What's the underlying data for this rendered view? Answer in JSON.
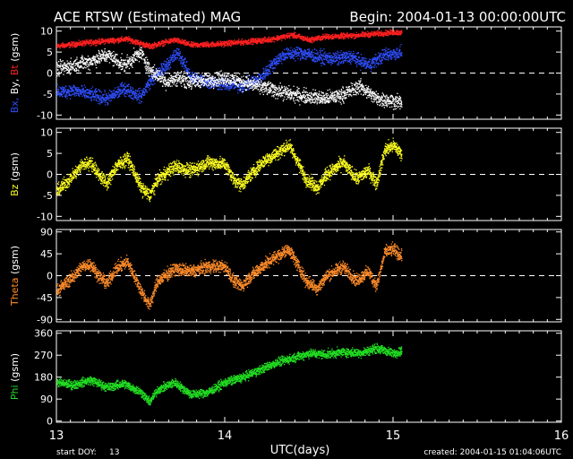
{
  "header": {
    "title": "ACE RTSW (Estimated) MAG",
    "begin": "Begin: 2004-01-13 00:00:00UTC"
  },
  "footer": {
    "start_doy_label": "start DOY:",
    "start_doy_value": "13",
    "xlabel": "UTC(days)",
    "created": "created: 2004-01-15 01:04:06UTC"
  },
  "colors": {
    "background": "#000000",
    "frame": "#ffffff",
    "bx": "#2f4fff",
    "by": "#ffffff",
    "bt": "#ff2020",
    "bz": "#ffff20",
    "theta": "#ff8c2a",
    "phi": "#22dd22"
  },
  "chart_data": [
    {
      "type": "scatter",
      "panel": "B components",
      "ylabel_parts": [
        {
          "text": "Bx,",
          "color": "bx"
        },
        {
          "text": " By,",
          "color": "by"
        },
        {
          "text": " Bt",
          "color": "bt"
        },
        {
          "text": "  (gsm)",
          "color": "by"
        }
      ],
      "ylim": [
        -11,
        11
      ],
      "yticks": [
        10,
        5,
        0,
        -5,
        -10
      ],
      "xlim": [
        13,
        16
      ],
      "zero_line": 0,
      "series": [
        {
          "key": "bt",
          "color_key": "bt",
          "spread": 0.9,
          "density": 6,
          "points": [
            [
              13.0,
              6.5
            ],
            [
              13.15,
              7.2
            ],
            [
              13.3,
              7.8
            ],
            [
              13.42,
              8.2
            ],
            [
              13.55,
              6.5
            ],
            [
              13.7,
              8.0
            ],
            [
              13.8,
              6.8
            ],
            [
              13.95,
              7.0
            ],
            [
              14.1,
              7.5
            ],
            [
              14.25,
              8.0
            ],
            [
              14.4,
              9.2
            ],
            [
              14.5,
              8.0
            ],
            [
              14.6,
              8.8
            ],
            [
              14.75,
              9.0
            ],
            [
              14.9,
              9.5
            ],
            [
              15.0,
              9.8
            ],
            [
              15.05,
              9.8
            ]
          ]
        },
        {
          "key": "bx",
          "color_key": "bx",
          "spread": 2.2,
          "density": 6,
          "points": [
            [
              13.0,
              -4.5
            ],
            [
              13.1,
              -4.0
            ],
            [
              13.2,
              -5.0
            ],
            [
              13.3,
              -6.0
            ],
            [
              13.4,
              -3.5
            ],
            [
              13.5,
              -5.5
            ],
            [
              13.55,
              -2.0
            ],
            [
              13.65,
              2.0
            ],
            [
              13.72,
              5.0
            ],
            [
              13.8,
              -1.0
            ],
            [
              13.9,
              -2.0
            ],
            [
              14.0,
              -2.5
            ],
            [
              14.1,
              -3.0
            ],
            [
              14.2,
              -1.5
            ],
            [
              14.3,
              3.0
            ],
            [
              14.35,
              4.5
            ],
            [
              14.45,
              5.0
            ],
            [
              14.55,
              4.0
            ],
            [
              14.65,
              3.5
            ],
            [
              14.75,
              4.0
            ],
            [
              14.85,
              2.0
            ],
            [
              14.95,
              4.5
            ],
            [
              15.05,
              5.0
            ]
          ]
        },
        {
          "key": "by",
          "color_key": "by",
          "spread": 2.4,
          "density": 6,
          "points": [
            [
              13.0,
              1.0
            ],
            [
              13.1,
              2.0
            ],
            [
              13.2,
              3.0
            ],
            [
              13.3,
              4.5
            ],
            [
              13.4,
              2.0
            ],
            [
              13.5,
              5.0
            ],
            [
              13.55,
              1.0
            ],
            [
              13.65,
              -2.0
            ],
            [
              13.72,
              -1.0
            ],
            [
              13.8,
              -2.0
            ],
            [
              13.9,
              -1.5
            ],
            [
              14.0,
              -1.0
            ],
            [
              14.1,
              -2.0
            ],
            [
              14.2,
              -3.0
            ],
            [
              14.3,
              -4.0
            ],
            [
              14.4,
              -5.0
            ],
            [
              14.5,
              -5.5
            ],
            [
              14.6,
              -6.0
            ],
            [
              14.7,
              -5.0
            ],
            [
              14.8,
              -3.0
            ],
            [
              14.9,
              -6.0
            ],
            [
              15.0,
              -6.5
            ],
            [
              15.05,
              -7.0
            ]
          ]
        }
      ]
    },
    {
      "type": "scatter",
      "panel": "Bz",
      "ylabel_parts": [
        {
          "text": "Bz",
          "color": "bz"
        },
        {
          "text": "  (gsm)",
          "color": "by"
        }
      ],
      "ylim": [
        -11,
        11
      ],
      "yticks": [
        10,
        5,
        0,
        -5,
        -10
      ],
      "xlim": [
        13,
        16
      ],
      "zero_line": 0,
      "series": [
        {
          "key": "bz",
          "color_key": "bz",
          "spread": 2.2,
          "density": 8,
          "points": [
            [
              13.0,
              -4.0
            ],
            [
              13.05,
              -2.0
            ],
            [
              13.1,
              0.0
            ],
            [
              13.15,
              2.5
            ],
            [
              13.2,
              3.0
            ],
            [
              13.25,
              0.0
            ],
            [
              13.3,
              -2.0
            ],
            [
              13.35,
              2.0
            ],
            [
              13.42,
              4.0
            ],
            [
              13.5,
              -3.0
            ],
            [
              13.55,
              -5.0
            ],
            [
              13.6,
              -1.0
            ],
            [
              13.7,
              2.0
            ],
            [
              13.8,
              1.0
            ],
            [
              13.9,
              3.0
            ],
            [
              14.0,
              2.5
            ],
            [
              14.05,
              -1.0
            ],
            [
              14.1,
              -2.5
            ],
            [
              14.15,
              0.0
            ],
            [
              14.22,
              3.0
            ],
            [
              14.3,
              5.0
            ],
            [
              14.38,
              7.0
            ],
            [
              14.42,
              4.0
            ],
            [
              14.48,
              -1.0
            ],
            [
              14.55,
              -3.0
            ],
            [
              14.6,
              0.0
            ],
            [
              14.7,
              3.0
            ],
            [
              14.78,
              -1.0
            ],
            [
              14.85,
              1.0
            ],
            [
              14.9,
              -2.0
            ],
            [
              14.95,
              6.0
            ],
            [
              15.0,
              7.0
            ],
            [
              15.05,
              5.0
            ]
          ]
        }
      ]
    },
    {
      "type": "scatter",
      "panel": "Theta",
      "ylabel_parts": [
        {
          "text": "Theta",
          "color": "theta"
        },
        {
          "text": "  (gsm)",
          "color": "by"
        }
      ],
      "ylim": [
        -95,
        95
      ],
      "yticks": [
        90,
        45,
        0,
        -45,
        -90
      ],
      "xlim": [
        13,
        16
      ],
      "zero_line": 0,
      "series": [
        {
          "key": "theta",
          "color_key": "theta",
          "spread": 18,
          "density": 8,
          "points": [
            [
              13.0,
              -30
            ],
            [
              13.05,
              -15
            ],
            [
              13.1,
              0
            ],
            [
              13.15,
              20
            ],
            [
              13.2,
              25
            ],
            [
              13.25,
              0
            ],
            [
              13.3,
              -15
            ],
            [
              13.35,
              15
            ],
            [
              13.42,
              30
            ],
            [
              13.5,
              -30
            ],
            [
              13.55,
              -60
            ],
            [
              13.6,
              -10
            ],
            [
              13.7,
              15
            ],
            [
              13.8,
              10
            ],
            [
              13.9,
              20
            ],
            [
              14.0,
              20
            ],
            [
              14.05,
              -10
            ],
            [
              14.1,
              -20
            ],
            [
              14.15,
              0
            ],
            [
              14.22,
              20
            ],
            [
              14.3,
              40
            ],
            [
              14.38,
              55
            ],
            [
              14.42,
              30
            ],
            [
              14.48,
              -10
            ],
            [
              14.55,
              -25
            ],
            [
              14.6,
              0
            ],
            [
              14.7,
              20
            ],
            [
              14.78,
              -10
            ],
            [
              14.85,
              10
            ],
            [
              14.9,
              -20
            ],
            [
              14.95,
              50
            ],
            [
              15.0,
              55
            ],
            [
              15.05,
              40
            ]
          ]
        }
      ]
    },
    {
      "type": "scatter",
      "panel": "Phi",
      "ylabel_parts": [
        {
          "text": "Phi",
          "color": "phi"
        },
        {
          "text": "  (gsm)",
          "color": "by"
        }
      ],
      "ylim": [
        -5,
        370
      ],
      "yticks": [
        360,
        270,
        180,
        90,
        0
      ],
      "xlim": [
        13,
        16
      ],
      "zero_line": null,
      "series": [
        {
          "key": "phi",
          "color_key": "phi",
          "spread": 25,
          "density": 8,
          "points": [
            [
              13.0,
              160
            ],
            [
              13.1,
              150
            ],
            [
              13.2,
              170
            ],
            [
              13.3,
              140
            ],
            [
              13.4,
              155
            ],
            [
              13.5,
              120
            ],
            [
              13.55,
              80
            ],
            [
              13.6,
              130
            ],
            [
              13.7,
              160
            ],
            [
              13.8,
              110
            ],
            [
              13.9,
              120
            ],
            [
              14.0,
              160
            ],
            [
              14.1,
              180
            ],
            [
              14.2,
              210
            ],
            [
              14.3,
              240
            ],
            [
              14.4,
              260
            ],
            [
              14.5,
              280
            ],
            [
              14.6,
              275
            ],
            [
              14.7,
              285
            ],
            [
              14.8,
              280
            ],
            [
              14.9,
              300
            ],
            [
              15.0,
              280
            ],
            [
              15.05,
              290
            ]
          ]
        }
      ]
    }
  ],
  "x_axis": {
    "ticks": [
      "13",
      "14",
      "15",
      "16"
    ],
    "tick_values": [
      13,
      14,
      15,
      16
    ]
  }
}
